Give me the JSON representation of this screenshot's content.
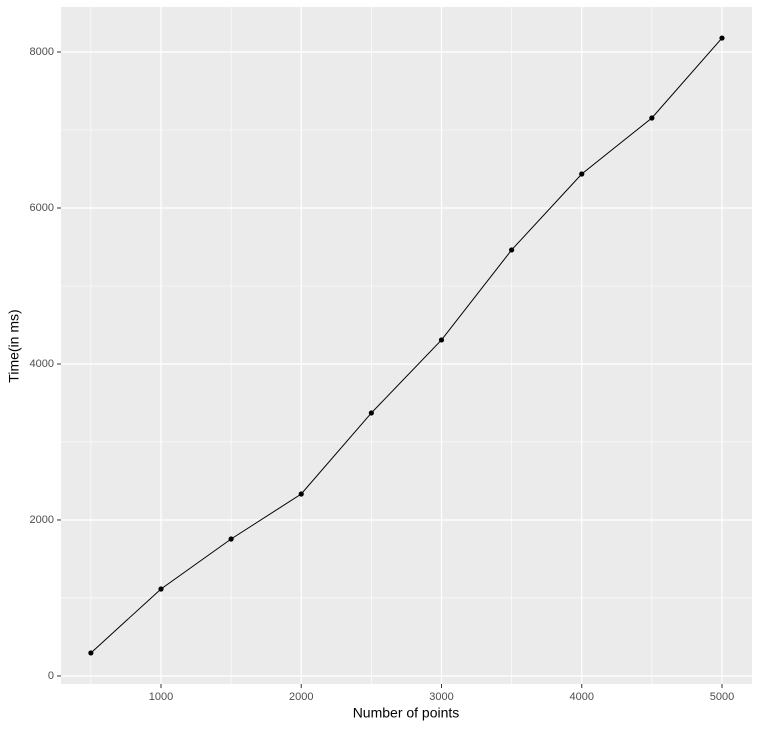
{
  "chart_data": {
    "type": "line",
    "x_label": "Number of points",
    "y_label": "Time(in ms)",
    "x": [
      500,
      1000,
      1500,
      2000,
      2500,
      3000,
      3500,
      4000,
      4500,
      5000
    ],
    "values": [
      295,
      1115,
      1756,
      2333,
      3372,
      4308,
      5462,
      6436,
      7154,
      8179
    ],
    "color": "#000000",
    "xlim": [
      287,
      5214
    ],
    "ylim": [
      -103,
      8577
    ],
    "xticks": [
      1000,
      2000,
      3000,
      4000,
      5000
    ],
    "yticks": [
      0,
      2000,
      4000,
      6000,
      8000
    ],
    "x_minor_breaks": [
      500,
      1500,
      2500,
      3500,
      4500
    ],
    "y_minor_breaks": [
      1000,
      3000,
      5000,
      7000
    ],
    "grid": true
  }
}
